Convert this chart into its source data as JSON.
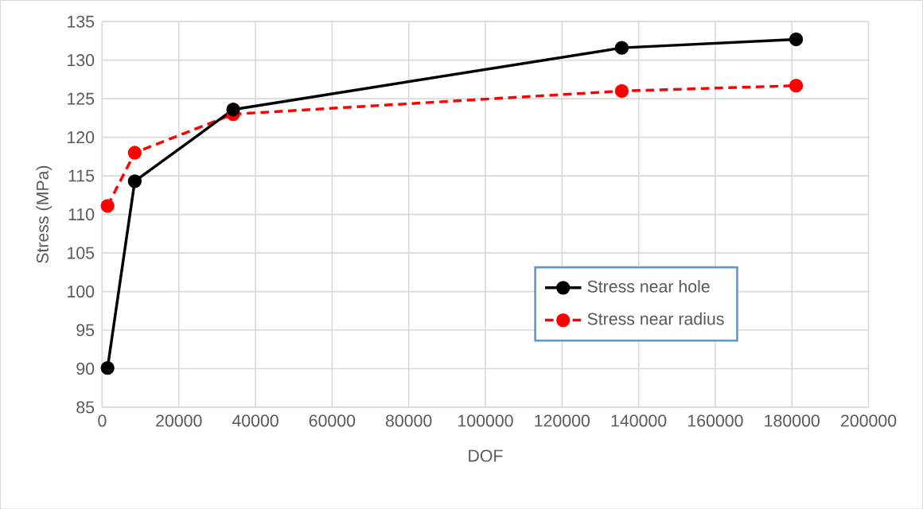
{
  "chart_data": {
    "type": "line",
    "xlabel": "DOF",
    "ylabel": "Stress (MPa)",
    "xlim": [
      0,
      200000
    ],
    "ylim": [
      85,
      135
    ],
    "xticks": [
      0,
      20000,
      40000,
      60000,
      80000,
      100000,
      120000,
      140000,
      160000,
      180000,
      200000
    ],
    "yticks": [
      85,
      90,
      95,
      100,
      105,
      110,
      115,
      120,
      125,
      130,
      135
    ],
    "grid": true,
    "legend": "bottom right",
    "marker": "circle",
    "series": [
      {
        "name": "Stress near hole",
        "color": "#000000",
        "line_style": "solid",
        "x": [
          1400,
          8500,
          34200,
          135600,
          181100
        ],
        "values": [
          90.1,
          114.3,
          123.6,
          131.6,
          132.7
        ]
      },
      {
        "name": "Stress near radius",
        "color": "#ff0000",
        "line_style": "dashed",
        "x": [
          1400,
          8500,
          34200,
          135600,
          181100
        ],
        "values": [
          111.1,
          118.0,
          123.0,
          126.0,
          126.7
        ]
      }
    ]
  }
}
